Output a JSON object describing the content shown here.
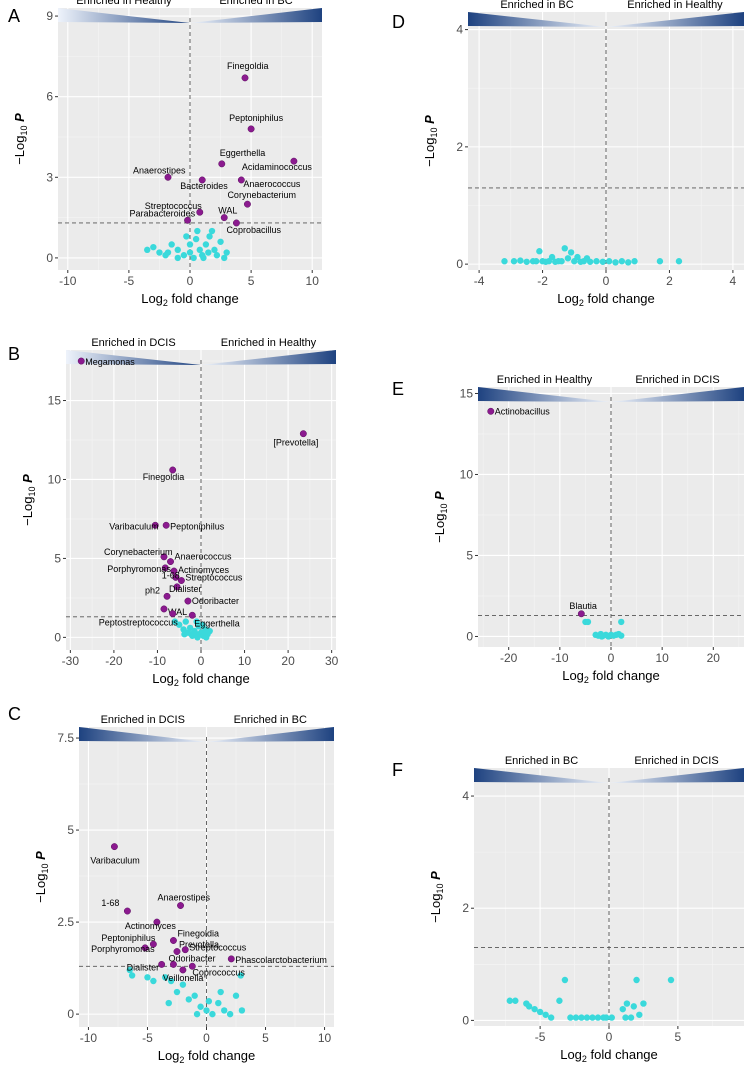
{
  "colors": {
    "significant": "#8b1a8f",
    "nonsignificant": "#3ad9db",
    "band_dark": "#1e4280",
    "band_light": "#eef3fb"
  },
  "footnote": "",
  "chart_data": [
    {
      "panel": "A",
      "type": "scatter",
      "xlabel": "Log2 fold change",
      "ylabel": "-Log10 P",
      "xlim": [
        -10.8,
        10.8
      ],
      "ylim": [
        -0.45,
        9.3
      ],
      "xticks": [
        -10,
        -5,
        0,
        5,
        10
      ],
      "yticks": [
        0,
        3,
        6,
        9
      ],
      "threshold": 1.3,
      "band": {
        "left": "Enriched in Healthy",
        "right": "Enriched in BC",
        "dark": "right"
      },
      "sig": [
        {
          "label": "Finegoldia",
          "x": 4.5,
          "y": 6.7
        },
        {
          "label": "Peptoniphilus",
          "x": 5,
          "y": 4.8
        },
        {
          "label": "Eggerthella",
          "x": 2.6,
          "y": 3.5
        },
        {
          "label": "Acidaminococcus",
          "x": 8.5,
          "y": 3.6
        },
        {
          "label": "Anaerostipes",
          "x": -1.8,
          "y": 3.0
        },
        {
          "label": "Bacteroides",
          "x": 1,
          "y": 2.9
        },
        {
          "label": "Anaerococcus",
          "x": 4.2,
          "y": 2.9
        },
        {
          "label": "Corynebacterium",
          "x": 4.7,
          "y": 2.0
        },
        {
          "label": "Streptococcus",
          "x": 0.8,
          "y": 1.7
        },
        {
          "label": "WAL",
          "x": 2.8,
          "y": 1.5
        },
        {
          "label": "Parabacteroides",
          "x": -0.2,
          "y": 1.4
        },
        {
          "label": "Coprobacillus",
          "x": 3.8,
          "y": 1.3
        }
      ],
      "ns": [
        [
          -3.5,
          0.3
        ],
        [
          -3,
          0.4
        ],
        [
          -2.5,
          0.2
        ],
        [
          -2,
          0.1
        ],
        [
          -1.5,
          0.5
        ],
        [
          -1,
          0.3
        ],
        [
          -1,
          0
        ],
        [
          -0.5,
          0.1
        ],
        [
          0,
          0.5
        ],
        [
          0,
          0.2
        ],
        [
          0.3,
          0
        ],
        [
          0.5,
          0.7
        ],
        [
          0.8,
          0.3
        ],
        [
          1,
          0.1
        ],
        [
          1.3,
          0.5
        ],
        [
          1.5,
          0.2
        ],
        [
          1.8,
          1.0
        ],
        [
          2,
          0.3
        ],
        [
          2.2,
          0.1
        ],
        [
          2.5,
          0.6
        ],
        [
          3,
          0.2
        ],
        [
          0.6,
          1.0
        ],
        [
          -0.3,
          0.8
        ],
        [
          1.1,
          0.0
        ],
        [
          2.8,
          0.0
        ],
        [
          -1.8,
          0.2
        ],
        [
          1.6,
          0.8
        ]
      ]
    },
    {
      "panel": "B",
      "type": "scatter",
      "xlabel": "Log2 fold change",
      "ylabel": "-Log10 P",
      "xlim": [
        -31,
        31
      ],
      "ylim": [
        -0.8,
        18.2
      ],
      "xticks": [
        -30,
        -20,
        -10,
        0,
        10,
        20,
        30
      ],
      "yticks": [
        0,
        5,
        10,
        15
      ],
      "threshold": 1.3,
      "band": {
        "left": "Enriched in DCIS",
        "right": "Enriched in Healthy",
        "dark": "right"
      },
      "sig": [
        {
          "label": "Megamonas",
          "x": -27.5,
          "y": 17.5
        },
        {
          "label": "[Prevotella]",
          "x": 23.5,
          "y": 12.9
        },
        {
          "label": "Finegoldia",
          "x": -6.5,
          "y": 10.6
        },
        {
          "label": "Varibaculum",
          "x": -10.5,
          "y": 7.1
        },
        {
          "label": "Peptoniphilus",
          "x": -8,
          "y": 7.1
        },
        {
          "label": "Corynebacterium",
          "x": -8.5,
          "y": 5.1
        },
        {
          "label": "Anaerococcus",
          "x": -7,
          "y": 4.8
        },
        {
          "label": "Porphyromonas",
          "x": -8.2,
          "y": 4.4
        },
        {
          "label": "Actinomyces",
          "x": -6.2,
          "y": 4.2
        },
        {
          "label": "1-68",
          "x": -5.8,
          "y": 3.8
        },
        {
          "label": "Streptococcus",
          "x": -4.5,
          "y": 3.6
        },
        {
          "label": "Dialister",
          "x": -5.5,
          "y": 3.2
        },
        {
          "label": "ph2",
          "x": -7.8,
          "y": 2.6
        },
        {
          "label": "Odoribacter",
          "x": -3,
          "y": 2.3
        },
        {
          "label": "WAL",
          "x": -8.5,
          "y": 1.8
        },
        {
          "label": "Peptostreptococcus",
          "x": -6.5,
          "y": 1.5
        },
        {
          "label": "Eggerthella",
          "x": -2,
          "y": 1.4
        }
      ],
      "ns": [
        [
          -5,
          0.8
        ],
        [
          -4,
          0.5
        ],
        [
          -3.5,
          1.0
        ],
        [
          -3,
          0.3
        ],
        [
          -2.5,
          0.6
        ],
        [
          -2,
          0.1
        ],
        [
          -1.5,
          0.4
        ],
        [
          -1,
          0.2
        ],
        [
          -0.5,
          0.7
        ],
        [
          0,
          0.3
        ],
        [
          0.5,
          0.1
        ],
        [
          1,
          0.5
        ],
        [
          1.5,
          0.2
        ],
        [
          2,
          0.4
        ],
        [
          -1,
          1.0
        ],
        [
          0.3,
          0.8
        ],
        [
          -2.2,
          0.2
        ],
        [
          -0.8,
          0.0
        ],
        [
          1.2,
          0.0
        ],
        [
          -3.8,
          0.2
        ],
        [
          -6,
          1.0
        ],
        [
          0.8,
          0.3
        ]
      ]
    },
    {
      "panel": "C",
      "type": "scatter",
      "xlabel": "Log2 fold change",
      "ylabel": "-Log10 P",
      "xlim": [
        -10.8,
        10.8
      ],
      "ylim": [
        -0.35,
        7.8
      ],
      "xticks": [
        -10,
        -5,
        0,
        5,
        10
      ],
      "yticks": [
        0,
        2.5,
        5,
        7.5
      ],
      "threshold": 1.3,
      "band": {
        "left": "Enriched in DCIS",
        "right": "Enriched in BC",
        "dark": "left"
      },
      "sig": [
        {
          "label": "Varibaculum",
          "x": -7.8,
          "y": 4.55
        },
        {
          "label": "Anaerostipes",
          "x": -2.2,
          "y": 2.95
        },
        {
          "label": "1-68",
          "x": -6.7,
          "y": 2.8
        },
        {
          "label": "Actinomyces",
          "x": -4.2,
          "y": 2.5
        },
        {
          "label": "Finegoldia",
          "x": -2.8,
          "y": 2.0
        },
        {
          "label": "Peptoniphilus",
          "x": -4.5,
          "y": 1.9
        },
        {
          "label": "Porphyromonas",
          "x": -5.2,
          "y": 1.8
        },
        {
          "label": "Prevotella",
          "x": -2.5,
          "y": 1.7
        },
        {
          "label": "Streptococcus",
          "x": -1.8,
          "y": 1.75
        },
        {
          "label": "Odoribacter",
          "x": -2.8,
          "y": 1.35
        },
        {
          "label": "Dialister",
          "x": -3.8,
          "y": 1.35
        },
        {
          "label": "Phascolarctobacterium",
          "x": 2.1,
          "y": 1.5
        },
        {
          "label": "Veillonella",
          "x": -2,
          "y": 1.2
        },
        {
          "label": "Coprococcus",
          "x": -1.2,
          "y": 1.3
        }
      ],
      "ns": [
        [
          -6.5,
          1.2
        ],
        [
          -6.3,
          1.05
        ],
        [
          -5,
          1.0
        ],
        [
          -4.5,
          0.9
        ],
        [
          -3.5,
          1.0
        ],
        [
          -3,
          0.9
        ],
        [
          -2.5,
          0.6
        ],
        [
          -2,
          0.8
        ],
        [
          -1.5,
          0.4
        ],
        [
          -1,
          0.5
        ],
        [
          -0.5,
          0.2
        ],
        [
          0,
          0.1
        ],
        [
          0.5,
          0.0
        ],
        [
          1,
          0.3
        ],
        [
          1.5,
          0.1
        ],
        [
          2,
          0.0
        ],
        [
          2.5,
          0.5
        ],
        [
          3,
          0.1
        ],
        [
          -0.8,
          0.0
        ],
        [
          0.2,
          0.35
        ],
        [
          1.2,
          0.6
        ],
        [
          2.9,
          1.05
        ],
        [
          -3.2,
          0.3
        ]
      ]
    },
    {
      "panel": "D",
      "type": "scatter",
      "xlabel": "Log2 fold change",
      "ylabel": "-Log10 P",
      "xlim": [
        -4.35,
        4.35
      ],
      "ylim": [
        -0.1,
        4.3
      ],
      "xticks": [
        -4,
        -2,
        0,
        2,
        4
      ],
      "yticks": [
        0,
        2,
        4
      ],
      "threshold": 1.3,
      "band": {
        "left": "Enriched in BC",
        "right": "Enriched in Healthy",
        "dark": "left"
      },
      "sig": [],
      "ns": [
        [
          -3.2,
          0.05
        ],
        [
          -2.9,
          0.05
        ],
        [
          -2.7,
          0.06
        ],
        [
          -2.5,
          0.04
        ],
        [
          -2.3,
          0.05
        ],
        [
          -2.2,
          0.05
        ],
        [
          -2.1,
          0.22
        ],
        [
          -2,
          0.05
        ],
        [
          -1.9,
          0.04
        ],
        [
          -1.8,
          0.05
        ],
        [
          -1.7,
          0.12
        ],
        [
          -1.6,
          0.04
        ],
        [
          -1.5,
          0.05
        ],
        [
          -1.4,
          0.05
        ],
        [
          -1.3,
          0.27
        ],
        [
          -1.2,
          0.1
        ],
        [
          -1.1,
          0.2
        ],
        [
          -1.0,
          0.05
        ],
        [
          -0.9,
          0.12
        ],
        [
          -0.8,
          0.04
        ],
        [
          -0.7,
          0.05
        ],
        [
          -0.6,
          0.1
        ],
        [
          -0.5,
          0.04
        ],
        [
          -0.3,
          0.05
        ],
        [
          -0.1,
          0.04
        ],
        [
          0.1,
          0.05
        ],
        [
          0.3,
          0.03
        ],
        [
          0.5,
          0.05
        ],
        [
          0.7,
          0.03
        ],
        [
          0.9,
          0.05
        ],
        [
          1.7,
          0.05
        ],
        [
          2.3,
          0.05
        ]
      ]
    },
    {
      "panel": "E",
      "type": "scatter",
      "xlabel": "Log2 fold change",
      "ylabel": "-Log10 P",
      "xlim": [
        -26,
        26
      ],
      "ylim": [
        -0.65,
        15.4
      ],
      "xticks": [
        -20,
        -10,
        0,
        10,
        20
      ],
      "yticks": [
        0,
        5,
        10,
        15
      ],
      "threshold": 1.3,
      "band": {
        "left": "Enriched in Healthy",
        "right": "Enriched in DCIS",
        "dark": "left"
      },
      "sig": [
        {
          "label": "Actinobacillus",
          "x": -23.5,
          "y": 13.9
        },
        {
          "label": "Blautia",
          "x": -5.8,
          "y": 1.4
        }
      ],
      "ns": [
        [
          -5,
          0.9
        ],
        [
          -4.5,
          0.9
        ],
        [
          -3,
          0.1
        ],
        [
          -2.5,
          0.05
        ],
        [
          -2,
          0.15
        ],
        [
          -1.5,
          0.05
        ],
        [
          -1,
          0.1
        ],
        [
          -0.5,
          0.0
        ],
        [
          0,
          0.1
        ],
        [
          0.5,
          0.05
        ],
        [
          1,
          0.1
        ],
        [
          1.5,
          0.15
        ],
        [
          2,
          0.05
        ],
        [
          2,
          0.9
        ],
        [
          -1.8,
          0.0
        ]
      ]
    },
    {
      "panel": "F",
      "type": "scatter",
      "xlabel": "Log2 fold change",
      "ylabel": "-Log10 P",
      "xlim": [
        -9.8,
        9.8
      ],
      "ylim": [
        -0.1,
        4.5
      ],
      "xticks": [
        -5,
        0,
        5
      ],
      "yticks": [
        0,
        2,
        4
      ],
      "threshold": 1.3,
      "band": {
        "left": "Enriched in BC",
        "right": "Enriched in DCIS",
        "dark": "left"
      },
      "sig": [],
      "ns": [
        [
          -7.2,
          0.35
        ],
        [
          -6.8,
          0.35
        ],
        [
          -6,
          0.3
        ],
        [
          -5.8,
          0.25
        ],
        [
          -5.4,
          0.2
        ],
        [
          -5,
          0.15
        ],
        [
          -4.6,
          0.1
        ],
        [
          -4.2,
          0.05
        ],
        [
          -3.6,
          0.35
        ],
        [
          -3.2,
          0.72
        ],
        [
          -2.8,
          0.05
        ],
        [
          -2.4,
          0.05
        ],
        [
          -2,
          0.05
        ],
        [
          -1.6,
          0.05
        ],
        [
          -1.2,
          0.05
        ],
        [
          -0.8,
          0.05
        ],
        [
          -0.4,
          0.05
        ],
        [
          -0.2,
          0.05
        ],
        [
          0.2,
          0.05
        ],
        [
          1,
          0.2
        ],
        [
          1.3,
          0.3
        ],
        [
          1.6,
          0.05
        ],
        [
          1.8,
          0.25
        ],
        [
          2,
          0.72
        ],
        [
          2.2,
          0.1
        ],
        [
          2.5,
          0.3
        ],
        [
          4.5,
          0.72
        ],
        [
          1.2,
          0.05
        ]
      ]
    }
  ]
}
